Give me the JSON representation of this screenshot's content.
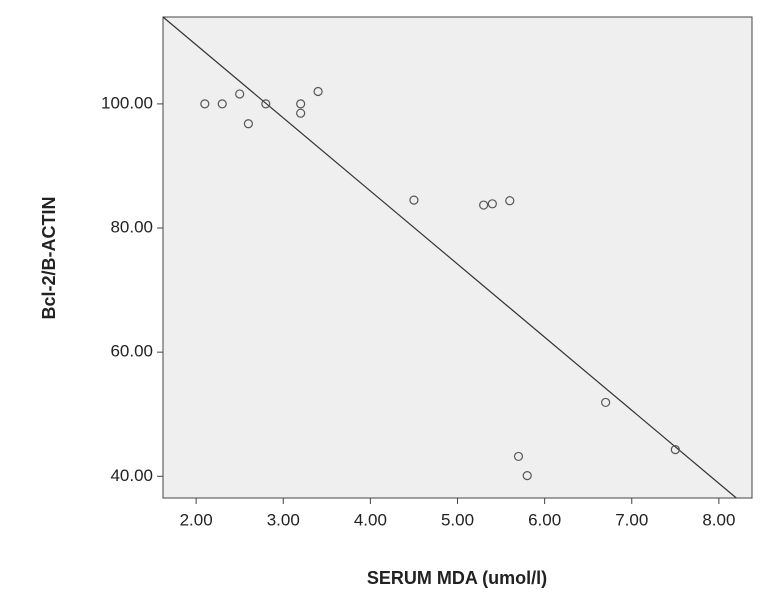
{
  "chart_data": {
    "type": "scatter",
    "x_label": "SERUM MDA (umol/l)",
    "y_label": "Bcl-2/B-ACTIN",
    "x": [
      2.1,
      2.3,
      2.5,
      2.6,
      2.8,
      3.2,
      3.2,
      3.4,
      4.5,
      5.3,
      5.4,
      5.6,
      5.7,
      5.8,
      6.7,
      7.5
    ],
    "values": [
      100,
      100,
      101.6,
      96.8,
      100,
      100,
      98.5,
      102,
      84.5,
      83.7,
      83.9,
      84.4,
      43.2,
      40.1,
      51.9,
      44.3
    ],
    "color": "#555555",
    "fit": {
      "x": [
        1.62,
        8.2
      ],
      "values": [
        114,
        36.5
      ],
      "color": "#333333"
    },
    "xlim": [
      1.62,
      8.38
    ],
    "ylim": [
      36.5,
      114
    ],
    "xticks": [
      {
        "value": 2,
        "label": "2.00"
      },
      {
        "value": 3,
        "label": "3.00"
      },
      {
        "value": 4,
        "label": "4.00"
      },
      {
        "value": 5,
        "label": "5.00"
      },
      {
        "value": 6,
        "label": "6.00"
      },
      {
        "value": 7,
        "label": "7.00"
      },
      {
        "value": 8,
        "label": "8.00"
      }
    ],
    "yticks": [
      {
        "value": 40,
        "label": "40.00"
      },
      {
        "value": 60,
        "label": "60.00"
      },
      {
        "value": 80,
        "label": "80.00"
      },
      {
        "value": 100,
        "label": "100.00"
      }
    ]
  }
}
